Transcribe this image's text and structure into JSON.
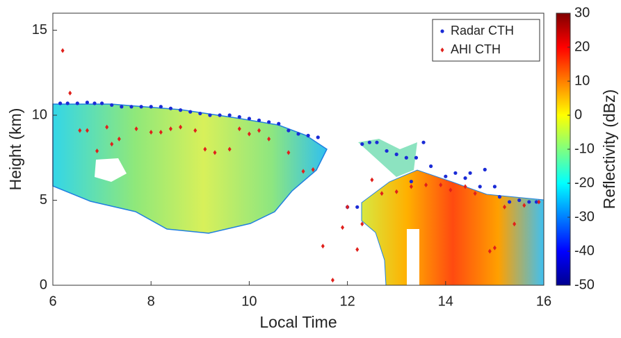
{
  "chart_data": {
    "type": "scatter",
    "xlabel": "Local Time",
    "ylabel": "Height (km)",
    "xlim": [
      6,
      16
    ],
    "xticks": [
      6,
      8,
      10,
      12,
      14,
      16
    ],
    "ylim": [
      0,
      16
    ],
    "yticks": [
      0,
      5,
      10,
      15
    ],
    "legend": "upper right",
    "colorbar": {
      "label": "Reflectivity (dBz)",
      "colormap": "jet",
      "lim": [
        -50,
        30
      ],
      "ticks": [
        -50,
        -40,
        -30,
        -20,
        -10,
        0,
        10,
        20,
        30
      ]
    },
    "series": [
      {
        "name": "Radar CTH",
        "color": "#1a2bd6",
        "marker": "circle",
        "x": [
          6.15,
          6.3,
          6.5,
          6.7,
          6.85,
          7.0,
          7.2,
          7.4,
          7.6,
          7.8,
          8.0,
          8.2,
          8.4,
          8.6,
          8.8,
          9.0,
          9.2,
          9.4,
          9.6,
          9.8,
          10.0,
          10.2,
          10.4,
          10.6,
          10.8,
          11.0,
          11.2,
          11.4,
          12.0,
          12.2,
          12.3,
          12.45,
          12.6,
          12.8,
          13.0,
          13.2,
          13.3,
          13.4,
          13.55,
          13.7,
          14.0,
          14.2,
          14.4,
          14.5,
          14.7,
          14.8,
          15.0,
          15.1,
          15.3,
          15.5,
          15.7,
          15.85
        ],
        "values": [
          10.7,
          10.7,
          10.7,
          10.75,
          10.7,
          10.7,
          10.6,
          10.5,
          10.5,
          10.5,
          10.5,
          10.5,
          10.4,
          10.3,
          10.2,
          10.1,
          10.0,
          10.0,
          10.0,
          9.9,
          9.8,
          9.7,
          9.6,
          9.5,
          9.1,
          8.9,
          8.8,
          8.7,
          4.6,
          4.6,
          8.3,
          8.4,
          8.4,
          7.9,
          7.7,
          7.5,
          6.1,
          7.5,
          8.4,
          7.0,
          6.4,
          6.6,
          6.3,
          6.6,
          5.8,
          6.8,
          5.8,
          5.2,
          4.9,
          5.0,
          4.9,
          4.9
        ]
      },
      {
        "name": "AHI CTH",
        "color": "#e0201b",
        "marker": "diamond",
        "x": [
          6.2,
          6.35,
          6.55,
          6.7,
          6.9,
          7.1,
          7.2,
          7.35,
          7.7,
          8.0,
          8.2,
          8.4,
          8.6,
          8.9,
          9.1,
          9.3,
          9.6,
          9.8,
          10.0,
          10.2,
          10.4,
          10.8,
          11.1,
          11.3,
          11.5,
          11.7,
          11.9,
          12.0,
          12.2,
          12.3,
          12.5,
          12.7,
          13.0,
          13.3,
          13.6,
          13.9,
          14.1,
          14.4,
          14.6,
          14.9,
          15.0,
          15.2,
          15.4,
          15.6,
          15.9
        ],
        "values": [
          13.8,
          11.3,
          9.1,
          9.1,
          7.9,
          9.3,
          8.3,
          8.6,
          9.2,
          9.0,
          9.0,
          9.2,
          9.3,
          9.1,
          8.0,
          7.8,
          8.0,
          9.2,
          8.9,
          9.1,
          8.6,
          7.8,
          6.7,
          6.8,
          2.3,
          0.3,
          3.4,
          4.6,
          2.1,
          3.6,
          6.2,
          5.4,
          5.5,
          5.8,
          5.9,
          5.9,
          5.6,
          5.8,
          5.4,
          2.0,
          2.2,
          4.6,
          3.6,
          4.7,
          4.9
        ]
      }
    ]
  }
}
